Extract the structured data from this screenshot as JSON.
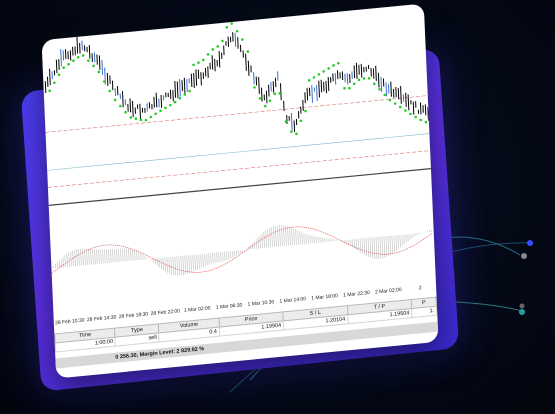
{
  "time_axis": [
    "28 Feb 10:30",
    "28 Feb 14:30",
    "28 Feb 18:30",
    "28 Feb 22:00",
    "1 Mar 02:00",
    "1 Mar 06:30",
    "1 Mar 10:30",
    "1 Mar 14:00",
    "1 Mar 18:00",
    "1 Mar 22:30",
    "2 Mar 02:00",
    "2"
  ],
  "table": {
    "headers": [
      "Time",
      "Type",
      "Volume",
      "Price",
      "S / L",
      "T / P",
      "P"
    ],
    "row": [
      "1:00:00",
      "sell",
      "0.4",
      "1.19904",
      "1.20104",
      "1.19504",
      "1."
    ]
  },
  "status_text": "0 256.30, Margin Level: 2 829.92 %",
  "colors": {
    "card": "#4a3df0",
    "up": "#22cc22",
    "down": "#000000",
    "macd": "#e04040"
  }
}
